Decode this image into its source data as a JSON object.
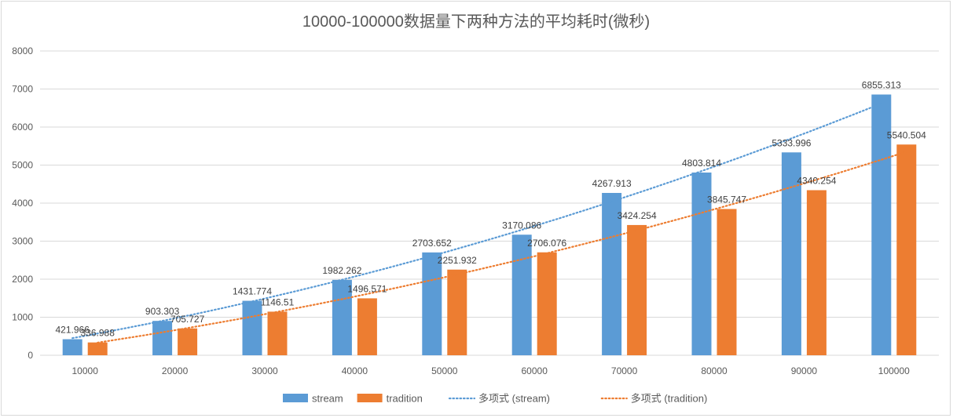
{
  "chart_data": {
    "type": "bar",
    "title": "10000-100000数据量下两种方法的平均耗时(微秒)",
    "xlabel": "",
    "ylabel": "",
    "ylim": [
      0,
      8000
    ],
    "yticks": [
      0,
      1000,
      2000,
      3000,
      4000,
      5000,
      6000,
      7000,
      8000
    ],
    "grid": true,
    "legend_position": "bottom",
    "categories": [
      "10000",
      "20000",
      "30000",
      "40000",
      "50000",
      "60000",
      "70000",
      "80000",
      "90000",
      "100000"
    ],
    "series": [
      {
        "name": "stream",
        "color": "#5B9BD5",
        "values": [
          421.966,
          903.303,
          1431.774,
          1982.262,
          2703.652,
          3170.086,
          4267.913,
          4803.814,
          5333.996,
          6855.313
        ],
        "labels": [
          "421.966",
          "903.303",
          "1431.774",
          "1982.262",
          "2703.652",
          "3170.086",
          "4267.913",
          "4803.814",
          "5333.996",
          "6855.313"
        ]
      },
      {
        "name": "tradition",
        "color": "#ED7D31",
        "values": [
          336.988,
          705.727,
          1146.51,
          1496.571,
          2251.932,
          2706.076,
          3424.254,
          3845.747,
          4340.254,
          5540.504
        ],
        "labels": [
          "336.988",
          "705.727",
          "1146.51",
          "1496.571",
          "2251.932",
          "2706.076",
          "3424.254",
          "3845.747",
          "4340.254",
          "5540.504"
        ]
      }
    ],
    "trendlines": [
      {
        "name": "多项式 (stream)",
        "series": "stream",
        "kind": "polynomial",
        "degree": 2,
        "color": "#5B9BD5"
      },
      {
        "name": "多项式 (tradition)",
        "series": "tradition",
        "kind": "polynomial",
        "degree": 2,
        "color": "#ED7D31"
      }
    ]
  }
}
